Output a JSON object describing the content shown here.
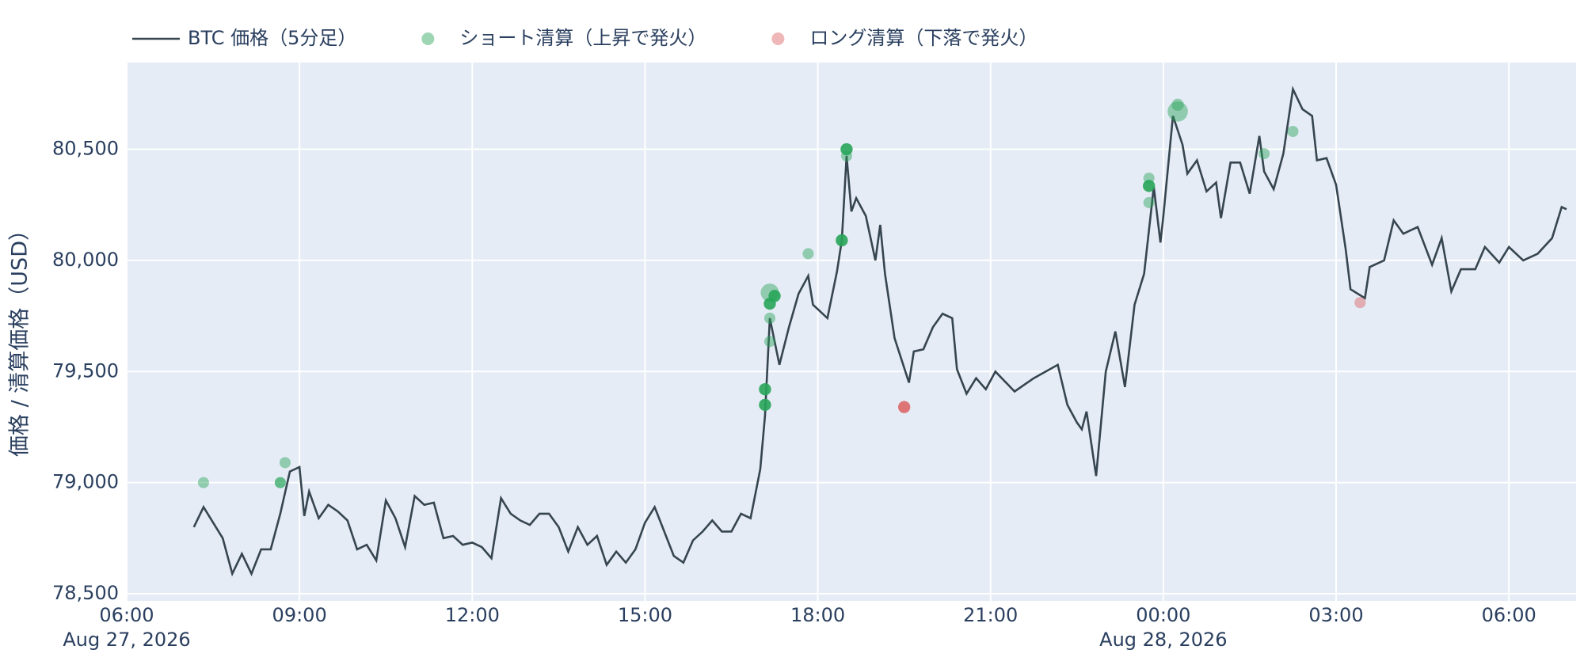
{
  "chart_data": {
    "type": "scatter",
    "ylabel": "価格 / 清算価格（USD）",
    "xlim": [
      "2026-08-27 06:00",
      "2026-08-28 07:10"
    ],
    "ylim": [
      78468,
      80890
    ],
    "xticks": [
      {
        "value": "2026-08-27 06:00",
        "label": "06:00"
      },
      {
        "value": "2026-08-27 09:00",
        "label": "09:00"
      },
      {
        "value": "2026-08-27 12:00",
        "label": "12:00"
      },
      {
        "value": "2026-08-27 15:00",
        "label": "15:00"
      },
      {
        "value": "2026-08-27 18:00",
        "label": "18:00"
      },
      {
        "value": "2026-08-27 21:00",
        "label": "21:00"
      },
      {
        "value": "2026-08-28 00:00",
        "label": "00:00"
      },
      {
        "value": "2026-08-28 03:00",
        "label": "03:00"
      },
      {
        "value": "2026-08-28 06:00",
        "label": "06:00"
      }
    ],
    "xtick_dates": [
      {
        "value": "2026-08-27 06:00",
        "label": "Aug 27, 2026"
      },
      {
        "value": "2026-08-28 00:00",
        "label": "Aug 28, 2026"
      }
    ],
    "yticks": [
      {
        "value": 78500,
        "label": "78,500"
      },
      {
        "value": 79000,
        "label": "79,000"
      },
      {
        "value": 79500,
        "label": "79,500"
      },
      {
        "value": 80000,
        "label": "80,000"
      },
      {
        "value": 80500,
        "label": "80,500"
      }
    ],
    "grid": true,
    "background": "#e5ecf6",
    "legend": "top-left",
    "series": [
      {
        "name": "BTC 価格（5分足）",
        "mode": "lines",
        "color": "#36454f",
        "x": [
          "2026-08-27 07:10",
          "2026-08-27 07:20",
          "2026-08-27 07:30",
          "2026-08-27 07:40",
          "2026-08-27 07:50",
          "2026-08-27 08:00",
          "2026-08-27 08:10",
          "2026-08-27 08:20",
          "2026-08-27 08:30",
          "2026-08-27 08:40",
          "2026-08-27 08:50",
          "2026-08-27 09:00",
          "2026-08-27 09:05",
          "2026-08-27 09:10",
          "2026-08-27 09:20",
          "2026-08-27 09:30",
          "2026-08-27 09:40",
          "2026-08-27 09:50",
          "2026-08-27 10:00",
          "2026-08-27 10:10",
          "2026-08-27 10:20",
          "2026-08-27 10:30",
          "2026-08-27 10:40",
          "2026-08-27 10:50",
          "2026-08-27 11:00",
          "2026-08-27 11:10",
          "2026-08-27 11:20",
          "2026-08-27 11:30",
          "2026-08-27 11:40",
          "2026-08-27 11:50",
          "2026-08-27 12:00",
          "2026-08-27 12:10",
          "2026-08-27 12:20",
          "2026-08-27 12:30",
          "2026-08-27 12:40",
          "2026-08-27 12:50",
          "2026-08-27 13:00",
          "2026-08-27 13:10",
          "2026-08-27 13:20",
          "2026-08-27 13:30",
          "2026-08-27 13:40",
          "2026-08-27 13:50",
          "2026-08-27 14:00",
          "2026-08-27 14:10",
          "2026-08-27 14:20",
          "2026-08-27 14:30",
          "2026-08-27 14:40",
          "2026-08-27 14:50",
          "2026-08-27 15:00",
          "2026-08-27 15:10",
          "2026-08-27 15:20",
          "2026-08-27 15:30",
          "2026-08-27 15:40",
          "2026-08-27 15:50",
          "2026-08-27 16:00",
          "2026-08-27 16:10",
          "2026-08-27 16:20",
          "2026-08-27 16:30",
          "2026-08-27 16:40",
          "2026-08-27 16:50",
          "2026-08-27 17:00",
          "2026-08-27 17:05",
          "2026-08-27 17:10",
          "2026-08-27 17:20",
          "2026-08-27 17:30",
          "2026-08-27 17:40",
          "2026-08-27 17:50",
          "2026-08-27 17:55",
          "2026-08-27 18:00",
          "2026-08-27 18:10",
          "2026-08-27 18:20",
          "2026-08-27 18:25",
          "2026-08-27 18:30",
          "2026-08-27 18:35",
          "2026-08-27 18:40",
          "2026-08-27 18:50",
          "2026-08-27 19:00",
          "2026-08-27 19:05",
          "2026-08-27 19:10",
          "2026-08-27 19:20",
          "2026-08-27 19:35",
          "2026-08-27 19:40",
          "2026-08-27 19:50",
          "2026-08-27 20:00",
          "2026-08-27 20:10",
          "2026-08-27 20:20",
          "2026-08-27 20:25",
          "2026-08-27 20:35",
          "2026-08-27 20:45",
          "2026-08-27 20:55",
          "2026-08-27 21:05",
          "2026-08-27 21:25",
          "2026-08-27 21:45",
          "2026-08-27 22:10",
          "2026-08-27 22:20",
          "2026-08-27 22:30",
          "2026-08-27 22:35",
          "2026-08-27 22:40",
          "2026-08-27 22:50",
          "2026-08-27 23:00",
          "2026-08-27 23:10",
          "2026-08-27 23:20",
          "2026-08-27 23:30",
          "2026-08-27 23:40",
          "2026-08-27 23:50",
          "2026-08-27 23:57",
          "2026-08-28 00:00",
          "2026-08-28 00:10",
          "2026-08-28 00:20",
          "2026-08-28 00:25",
          "2026-08-28 00:35",
          "2026-08-28 00:45",
          "2026-08-28 00:55",
          "2026-08-28 01:00",
          "2026-08-28 01:10",
          "2026-08-28 01:20",
          "2026-08-28 01:30",
          "2026-08-28 01:40",
          "2026-08-28 01:45",
          "2026-08-28 01:55",
          "2026-08-28 02:05",
          "2026-08-28 02:15",
          "2026-08-28 02:25",
          "2026-08-28 02:35",
          "2026-08-28 02:40",
          "2026-08-28 02:50",
          "2026-08-28 03:00",
          "2026-08-28 03:10",
          "2026-08-28 03:15",
          "2026-08-28 03:30",
          "2026-08-28 03:35",
          "2026-08-28 03:50",
          "2026-08-28 04:00",
          "2026-08-28 04:10",
          "2026-08-28 04:25",
          "2026-08-28 04:40",
          "2026-08-28 04:50",
          "2026-08-28 05:00",
          "2026-08-28 05:10",
          "2026-08-28 05:25",
          "2026-08-28 05:35",
          "2026-08-28 05:50",
          "2026-08-28 06:00",
          "2026-08-28 06:15",
          "2026-08-28 06:30",
          "2026-08-28 06:45",
          "2026-08-28 06:55",
          "2026-08-28 07:00"
        ],
        "values": [
          78800,
          78890,
          78820,
          78750,
          78590,
          78680,
          78590,
          78700,
          78700,
          78860,
          79050,
          79070,
          78850,
          78960,
          78840,
          78900,
          78870,
          78830,
          78700,
          78720,
          78650,
          78920,
          78840,
          78710,
          78940,
          78900,
          78910,
          78750,
          78760,
          78720,
          78730,
          78710,
          78660,
          78930,
          78860,
          78830,
          78810,
          78860,
          78860,
          78800,
          78690,
          78800,
          78720,
          78760,
          78630,
          78690,
          78640,
          78700,
          78820,
          78890,
          78780,
          78670,
          78640,
          78740,
          78780,
          78830,
          78780,
          78780,
          78860,
          78840,
          79060,
          79300,
          79740,
          79530,
          79700,
          79850,
          79930,
          79800,
          79780,
          79740,
          79950,
          80090,
          80470,
          80220,
          80280,
          80200,
          80000,
          80160,
          79940,
          79650,
          79450,
          79590,
          79600,
          79700,
          79760,
          79740,
          79510,
          79400,
          79470,
          79420,
          79500,
          79410,
          79470,
          79530,
          79350,
          79270,
          79240,
          79320,
          79030,
          79500,
          79680,
          79430,
          79800,
          79940,
          80330,
          80080,
          80200,
          80650,
          80520,
          80390,
          80450,
          80310,
          80350,
          80190,
          80440,
          80440,
          80300,
          80560,
          80400,
          80320,
          80480,
          80770,
          80680,
          80650,
          80450,
          80460,
          80340,
          80050,
          79870,
          79830,
          79970,
          80000,
          80180,
          80120,
          80150,
          79980,
          80100,
          79860,
          79960,
          79960,
          80060,
          79990,
          80060,
          80000,
          80030,
          80100,
          80240,
          80230
        ]
      },
      {
        "name": "ショート清算（上昇で発火）",
        "mode": "markers",
        "color": "#27a559",
        "x": [
          "2026-08-27 07:20",
          "2026-08-27 08:40",
          "2026-08-27 08:45",
          "2026-08-27 17:05",
          "2026-08-27 17:05",
          "2026-08-27 17:10",
          "2026-08-27 17:10",
          "2026-08-27 17:10",
          "2026-08-27 17:10",
          "2026-08-27 17:15",
          "2026-08-27 17:50",
          "2026-08-27 18:25",
          "2026-08-27 18:30",
          "2026-08-27 18:30",
          "2026-08-27 23:45",
          "2026-08-27 23:45",
          "2026-08-27 23:45",
          "2026-08-28 00:15",
          "2026-08-28 00:15",
          "2026-08-28 01:45",
          "2026-08-28 02:15"
        ],
        "values": [
          79000,
          79000,
          79090,
          79350,
          79420,
          79635,
          79740,
          79805,
          79855,
          79840,
          80030,
          80090,
          80470,
          80500,
          80370,
          80335,
          80260,
          80670,
          80700,
          80480,
          80580
        ],
        "sizes": [
          11,
          11,
          11,
          12,
          12,
          11,
          11,
          12,
          18,
          12,
          11,
          12,
          11,
          12,
          11,
          12,
          11,
          20,
          12,
          11,
          11
        ],
        "opacities": [
          0.45,
          0.7,
          0.45,
          0.9,
          0.9,
          0.45,
          0.45,
          0.9,
          0.45,
          0.9,
          0.45,
          0.9,
          0.45,
          0.9,
          0.45,
          0.9,
          0.45,
          0.45,
          0.45,
          0.45,
          0.45
        ]
      },
      {
        "name": "ロング清算（下落で発火）",
        "mode": "markers",
        "color": "#dc5f5f",
        "x": [
          "2026-08-27 19:30",
          "2026-08-28 03:25"
        ],
        "values": [
          79340,
          79810
        ],
        "sizes": [
          12,
          11
        ],
        "opacities": [
          0.85,
          0.45
        ]
      }
    ]
  }
}
